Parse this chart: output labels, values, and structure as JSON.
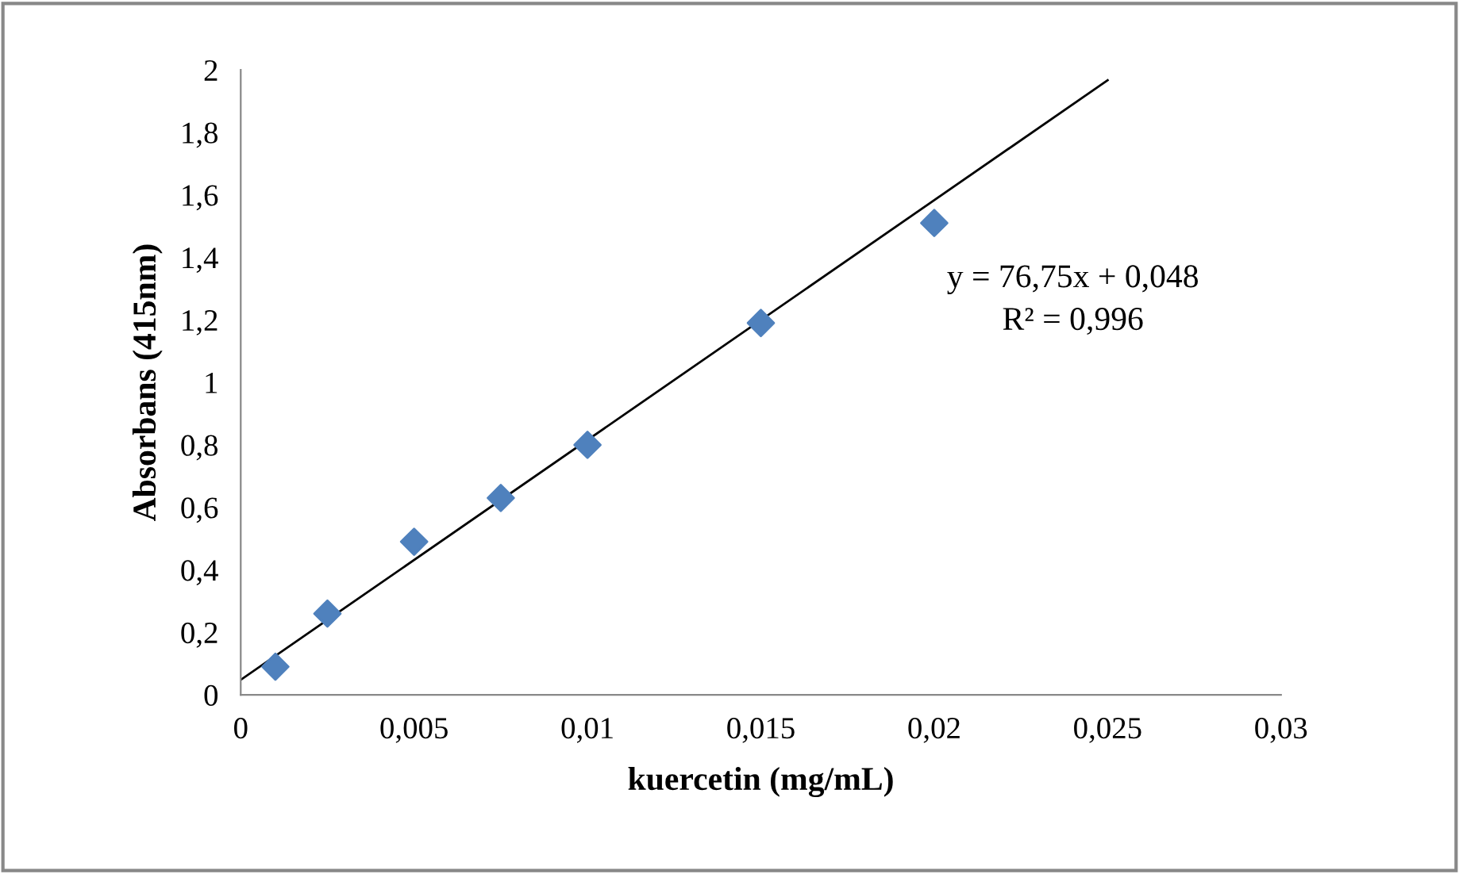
{
  "chart_data": {
    "type": "scatter",
    "xlabel": "kuercetin (mg/mL)",
    "ylabel": "Absorbans (415nm)",
    "x": [
      0.001,
      0.0025,
      0.005,
      0.0075,
      0.01,
      0.015,
      0.02
    ],
    "series": [
      {
        "color": "#4f81bd",
        "marker": "diamond",
        "values": [
          0.09,
          0.26,
          0.49,
          0.63,
          0.8,
          1.19,
          1.51
        ]
      },
      {
        "type": "line",
        "color": "#000000",
        "marker": "none",
        "line_style": "solid",
        "x": [
          0,
          0.025
        ],
        "values": [
          0.048,
          1.967
        ]
      }
    ],
    "xlim": [
      0,
      0.03
    ],
    "ylim": [
      0,
      2
    ],
    "xticks": [
      0,
      {
        "value": 0.005,
        "label": "0,005"
      },
      {
        "value": 0.01,
        "label": "0,01"
      },
      {
        "value": 0.015,
        "label": "0,015"
      },
      {
        "value": 0.02,
        "label": "0,02"
      },
      {
        "value": 0.025,
        "label": "0,025"
      },
      {
        "value": 0.03,
        "label": "0,03"
      }
    ],
    "yticks": [
      0,
      {
        "value": 0.2,
        "label": "0,2"
      },
      {
        "value": 0.4,
        "label": "0,4"
      },
      {
        "value": 0.6,
        "label": "0,6"
      },
      {
        "value": 0.8,
        "label": "0,8"
      },
      1,
      {
        "value": 1.2,
        "label": "1,2"
      },
      {
        "value": 1.4,
        "label": "1,4"
      },
      {
        "value": 1.6,
        "label": "1,6"
      },
      {
        "value": 1.8,
        "label": "1,8"
      },
      2
    ],
    "grid": false,
    "legend": false,
    "annotations": [
      "y = 76,75x + 0,048",
      "R² = 0,996"
    ]
  }
}
